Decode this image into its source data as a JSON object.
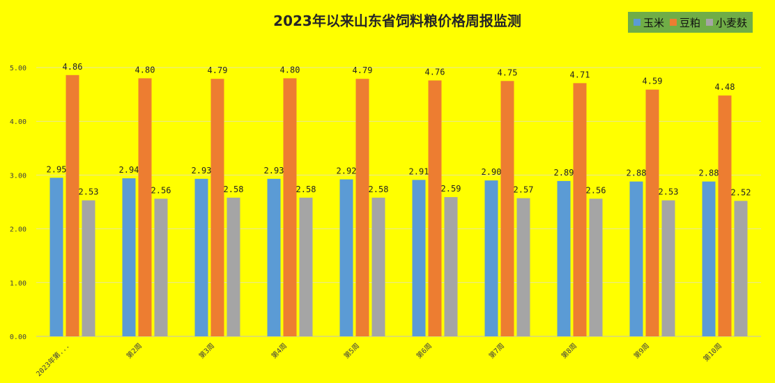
{
  "chart_data": {
    "type": "bar",
    "title": "2023年以来山东省饲料粮价格周报监测",
    "categories": [
      "2023年第...",
      "第2周",
      "第3周",
      "第4周",
      "第5周",
      "第6周",
      "第7周",
      "第8周",
      "第9周",
      "第10周"
    ],
    "series": [
      {
        "name": "玉米",
        "color": "#5b9bd5",
        "values": [
          2.95,
          2.94,
          2.93,
          2.93,
          2.92,
          2.91,
          2.9,
          2.89,
          2.88,
          2.88
        ]
      },
      {
        "name": "豆粕",
        "color": "#ed7d31",
        "values": [
          4.86,
          4.8,
          4.79,
          4.8,
          4.79,
          4.76,
          4.75,
          4.71,
          4.59,
          4.48
        ]
      },
      {
        "name": "小麦麸",
        "color": "#a5a5a5",
        "values": [
          2.53,
          2.56,
          2.58,
          2.58,
          2.58,
          2.59,
          2.57,
          2.56,
          2.53,
          2.52
        ]
      }
    ],
    "yticks": [
      "0.00",
      "1.00",
      "2.00",
      "3.00",
      "4.00",
      "5.00"
    ],
    "ylim": [
      0,
      5
    ],
    "grid": true,
    "legend_position": "top-right",
    "background": "#ffff00",
    "legend_background": "#70ad47"
  }
}
